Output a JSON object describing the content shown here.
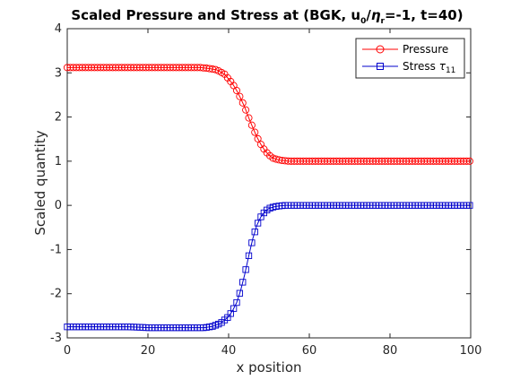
{
  "chart_data": {
    "type": "line",
    "title": "Scaled Pressure and Stress at (BGK, u₀/ηᵣ=-1, t=40)",
    "title_parts": {
      "prefix": "Scaled Pressure and Stress at (BGK, u",
      "sub_u": "0",
      "slash": "/",
      "eta": "η",
      "sub_r": "r",
      "suffix": "=-1, t=40)"
    },
    "xlabel": "x position",
    "ylabel": "Scaled quantity",
    "xlim": [
      0,
      100
    ],
    "ylim": [
      -3,
      4
    ],
    "xticks": [
      "0",
      "20",
      "40",
      "60",
      "80",
      "100"
    ],
    "yticks": [
      "4",
      "3",
      "2",
      "1",
      "0",
      "-1",
      "-2",
      "-3"
    ],
    "legend_position": "top-right",
    "series": [
      {
        "name": "Pressure",
        "color": "#ff0000",
        "marker": "circle",
        "x": [
          0,
          5,
          10,
          15,
          20,
          25,
          30,
          33,
          35,
          37,
          39,
          41,
          42,
          43,
          44,
          45,
          46,
          47,
          48,
          49,
          50,
          51,
          52,
          53,
          54,
          55,
          56,
          58,
          60,
          65,
          70,
          75,
          80,
          85,
          90,
          95,
          100
        ],
        "y": [
          3.12,
          3.12,
          3.12,
          3.12,
          3.12,
          3.12,
          3.12,
          3.12,
          3.1,
          3.07,
          2.97,
          2.75,
          2.6,
          2.42,
          2.22,
          1.98,
          1.76,
          1.55,
          1.38,
          1.24,
          1.14,
          1.07,
          1.04,
          1.02,
          1.01,
          1.0,
          1.0,
          1.0,
          1.0,
          1.0,
          1.0,
          1.0,
          1.0,
          1.0,
          1.0,
          1.0,
          1.0
        ]
      },
      {
        "name": "Stress τ11",
        "name_parts": {
          "label": "Stress ",
          "tau": "τ",
          "sub": "11"
        },
        "color": "#0000cc",
        "marker": "square",
        "x": [
          0,
          5,
          10,
          15,
          18,
          20,
          25,
          30,
          34,
          36,
          38,
          40,
          41,
          42,
          43,
          44,
          45,
          46,
          47,
          48,
          49,
          50,
          51,
          52,
          53,
          54,
          55,
          56,
          58,
          60,
          65,
          70,
          75,
          80,
          85,
          90,
          95,
          100
        ],
        "y": [
          -2.75,
          -2.75,
          -2.75,
          -2.75,
          -2.76,
          -2.77,
          -2.77,
          -2.77,
          -2.77,
          -2.74,
          -2.67,
          -2.52,
          -2.38,
          -2.2,
          -1.92,
          -1.56,
          -1.14,
          -0.75,
          -0.45,
          -0.26,
          -0.14,
          -0.07,
          -0.04,
          -0.02,
          -0.01,
          0.0,
          0.0,
          0.0,
          0.0,
          0.0,
          0.0,
          0.0,
          0.0,
          0.0,
          0.0,
          0.0,
          0.0,
          0.0
        ]
      }
    ]
  }
}
